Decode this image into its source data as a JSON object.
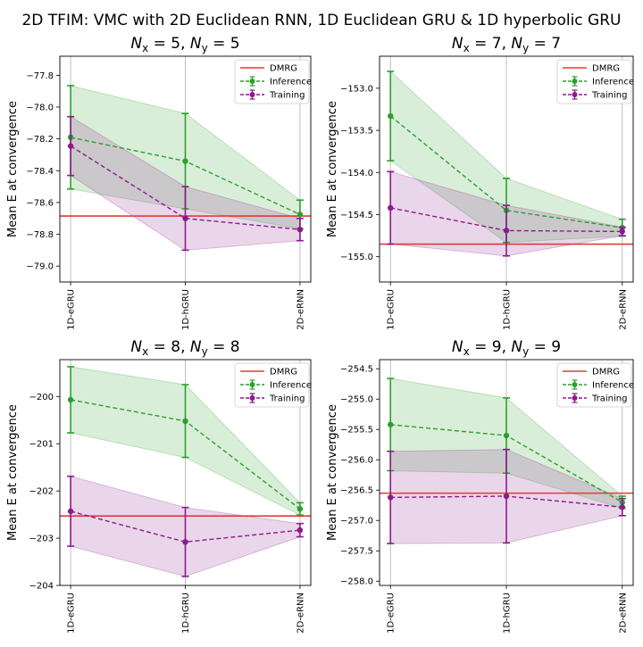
{
  "figure": {
    "suptitle": "2D TFIM: VMC with 2D Euclidean RNN, 1D Euclidean GRU & 1D hyperbolic GRU"
  },
  "chart_data": [
    {
      "type": "line",
      "title": "$N_x$ = 5, $N_y$ = 5",
      "title_parts": [
        "N",
        "x",
        " = 5, ",
        "N",
        "y",
        " = 5"
      ],
      "xlabel": "",
      "ylabel": "Mean E at convergence",
      "categories": [
        "1D-eGRU",
        "1D-hGRU",
        "2D-eRNN"
      ],
      "ylim": [
        -79.1,
        -77.68
      ],
      "yticks": [
        -77.8,
        -78.0,
        -78.2,
        -78.4,
        -78.6,
        -78.8,
        -79.0
      ],
      "ytick_labels": [
        "−77.8",
        "−78.0",
        "−78.2",
        "−78.4",
        "−78.6",
        "−78.8",
        "−79.0"
      ],
      "dmrg": -78.685,
      "legend": [
        "DMRG",
        "Inference",
        "Training"
      ],
      "legend_position": "top-right",
      "series": [
        {
          "name": "Inference",
          "color": "#2ca02c",
          "values": [
            -78.19,
            -78.34,
            -78.675
          ],
          "errors": [
            0.325,
            0.3,
            0.09
          ]
        },
        {
          "name": "Training",
          "color": "#8b1a8b",
          "values": [
            -78.245,
            -78.7,
            -78.77
          ],
          "errors": [
            0.185,
            0.2,
            0.07
          ]
        }
      ]
    },
    {
      "type": "line",
      "title": "$N_x$ = 7, $N_y$ = 7",
      "title_parts": [
        "N",
        "x",
        " = 7, ",
        "N",
        "y",
        " = 7"
      ],
      "xlabel": "",
      "ylabel": "Mean E at convergence",
      "categories": [
        "1D-eGRU",
        "1D-hGRU",
        "2D-eRNN"
      ],
      "ylim": [
        -155.3,
        -152.62
      ],
      "yticks": [
        -153.0,
        -153.5,
        -154.0,
        -154.5,
        -155.0
      ],
      "ytick_labels": [
        "−153.0",
        "−153.5",
        "−154.0",
        "−154.5",
        "−155.0"
      ],
      "dmrg": -154.85,
      "legend": [
        "DMRG",
        "Inference",
        "Training"
      ],
      "legend_position": "top-right",
      "series": [
        {
          "name": "Inference",
          "color": "#2ca02c",
          "values": [
            -153.33,
            -154.45,
            -154.655
          ],
          "errors": [
            0.53,
            0.38,
            0.1
          ]
        },
        {
          "name": "Training",
          "color": "#8b1a8b",
          "values": [
            -154.42,
            -154.69,
            -154.7
          ],
          "errors": [
            0.43,
            0.3,
            0.05
          ]
        }
      ]
    },
    {
      "type": "line",
      "title": "$N_x$ = 8, $N_y$ = 8",
      "title_parts": [
        "N",
        "x",
        " = 8, ",
        "N",
        "y",
        " = 8"
      ],
      "xlabel": "",
      "ylabel": "Mean E at convergence",
      "categories": [
        "1D-eGRU",
        "1D-hGRU",
        "2D-eRNN"
      ],
      "ylim": [
        -204.0,
        -199.22
      ],
      "yticks": [
        -200,
        -201,
        -202,
        -203,
        -204
      ],
      "ytick_labels": [
        "−200",
        "−201",
        "−202",
        "−203",
        "−204"
      ],
      "dmrg": -202.53,
      "legend": [
        "DMRG",
        "Inference",
        "Training"
      ],
      "legend_position": "top-right",
      "series": [
        {
          "name": "Inference",
          "color": "#2ca02c",
          "values": [
            -200.07,
            -200.52,
            -202.38
          ],
          "errors": [
            0.7,
            0.77,
            0.13
          ]
        },
        {
          "name": "Training",
          "color": "#8b1a8b",
          "values": [
            -202.43,
            -203.08,
            -202.83
          ],
          "errors": [
            0.74,
            0.73,
            0.14
          ]
        }
      ]
    },
    {
      "type": "line",
      "title": "$N_x$ = 9, $N_y$ = 9",
      "title_parts": [
        "N",
        "x",
        " = 9, ",
        "N",
        "y",
        " = 9"
      ],
      "xlabel": "",
      "ylabel": "Mean E at convergence",
      "categories": [
        "1D-eGRU",
        "1D-hGRU",
        "2D-eRNN"
      ],
      "ylim": [
        -258.07,
        -254.35
      ],
      "yticks": [
        -254.5,
        -255.0,
        -255.5,
        -256.0,
        -256.5,
        -257.0,
        -257.5,
        -258.0
      ],
      "ytick_labels": [
        "−254.5",
        "−255.0",
        "−255.5",
        "−256.0",
        "−256.5",
        "−257.0",
        "−257.5",
        "−258.0"
      ],
      "dmrg": -256.55,
      "legend": [
        "DMRG",
        "Inference",
        "Training"
      ],
      "legend_position": "top-right",
      "series": [
        {
          "name": "Inference",
          "color": "#2ca02c",
          "values": [
            -255.42,
            -255.6,
            -256.7
          ],
          "errors": [
            0.76,
            0.62,
            0.1
          ]
        },
        {
          "name": "Training",
          "color": "#8b1a8b",
          "values": [
            -256.62,
            -256.6,
            -256.78
          ],
          "errors": [
            0.76,
            0.77,
            0.14
          ]
        }
      ]
    }
  ]
}
